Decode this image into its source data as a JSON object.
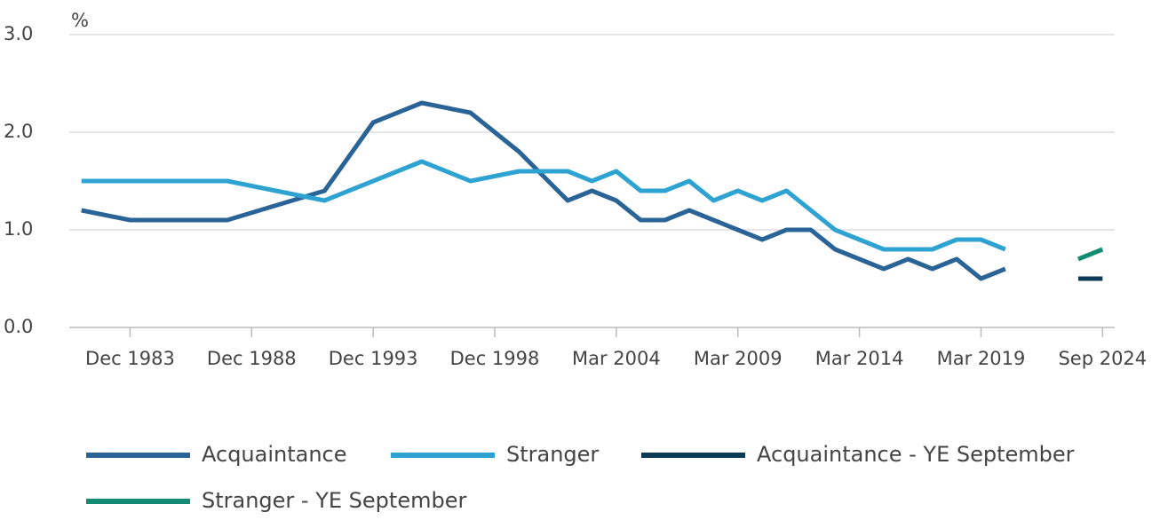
{
  "chart_data": {
    "type": "line",
    "y_unit": "%",
    "xlim": [
      1981.5,
      2024.5
    ],
    "xticks": [
      {
        "value": 1984,
        "label": "Dec 1983"
      },
      {
        "value": 1989,
        "label": "Dec 1988"
      },
      {
        "value": 1994,
        "label": "Dec 1993"
      },
      {
        "value": 1999,
        "label": "Dec 1998"
      },
      {
        "value": 2004,
        "label": "Mar 2004"
      },
      {
        "value": 2009,
        "label": "Mar 2009"
      },
      {
        "value": 2014,
        "label": "Mar 2014"
      },
      {
        "value": 2019,
        "label": "Mar 2019"
      },
      {
        "value": 2024,
        "label": "Sep 2024"
      }
    ],
    "ylim": [
      0,
      3
    ],
    "yticks": [
      {
        "value": 0,
        "label": "0.0"
      },
      {
        "value": 1,
        "label": "1.0"
      },
      {
        "value": 2,
        "label": "2.0"
      },
      {
        "value": 3,
        "label": "3.0"
      }
    ],
    "grid": true,
    "legend": "bottom",
    "series": [
      {
        "name": "Acquaintance",
        "color": "#2a6395",
        "x": [
          1982,
          1984,
          1986,
          1988,
          1990,
          1992,
          1994,
          1996,
          1998,
          2000,
          2001,
          2002,
          2003,
          2004,
          2005,
          2006,
          2007,
          2008,
          2009,
          2010,
          2011,
          2012,
          2013,
          2014,
          2015,
          2016,
          2017,
          2018,
          2019,
          2020
        ],
        "values": [
          1.2,
          1.1,
          1.1,
          1.1,
          1.25,
          1.4,
          2.1,
          2.3,
          2.2,
          1.8,
          1.55,
          1.3,
          1.4,
          1.3,
          1.1,
          1.1,
          1.2,
          1.1,
          1.0,
          0.9,
          1.0,
          1.0,
          0.8,
          0.7,
          0.6,
          0.7,
          0.6,
          0.7,
          0.5,
          0.6
        ]
      },
      {
        "name": "Stranger",
        "color": "#2ea3d2",
        "x": [
          1982,
          1984,
          1986,
          1988,
          1990,
          1992,
          1994,
          1996,
          1998,
          2000,
          2001,
          2002,
          2003,
          2004,
          2005,
          2006,
          2007,
          2008,
          2009,
          2010,
          2011,
          2012,
          2013,
          2014,
          2015,
          2016,
          2017,
          2018,
          2019,
          2020
        ],
        "values": [
          1.5,
          1.5,
          1.5,
          1.5,
          1.4,
          1.3,
          1.5,
          1.7,
          1.5,
          1.6,
          1.6,
          1.6,
          1.5,
          1.6,
          1.4,
          1.4,
          1.5,
          1.3,
          1.4,
          1.3,
          1.4,
          1.2,
          1.0,
          0.9,
          0.8,
          0.8,
          0.8,
          0.9,
          0.9,
          0.8
        ]
      },
      {
        "name": "Acquaintance - YE September",
        "color": "#0c3953",
        "x": [
          2023,
          2024
        ],
        "values": [
          0.5,
          0.5
        ]
      },
      {
        "name": "Stranger - YE September",
        "color": "#138a72",
        "x": [
          2023,
          2024
        ],
        "values": [
          0.7,
          0.8
        ]
      }
    ]
  }
}
